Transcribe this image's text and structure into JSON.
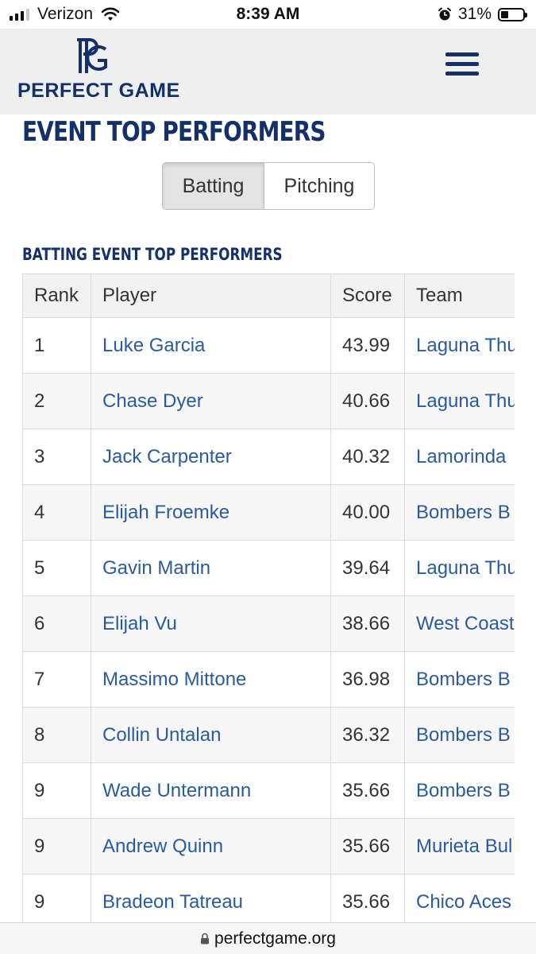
{
  "status_bar": {
    "carrier": "Verizon",
    "time": "8:39 AM",
    "battery": "31%",
    "icons": [
      "signal-icon",
      "wifi-icon",
      "alarm-icon",
      "battery-icon"
    ]
  },
  "header": {
    "logo_text": "PERFECT GAME",
    "logo_icon": "pg-logo-icon",
    "menu_icon": "hamburger-menu-icon",
    "brand_color": "#13306b"
  },
  "page": {
    "title": "EVENT TOP PERFORMERS",
    "toggle": {
      "batting": "Batting",
      "pitching": "Pitching",
      "selected": "Batting"
    },
    "section_title": "BATTING EVENT TOP PERFORMERS"
  },
  "table": {
    "headers": {
      "rank": "Rank",
      "player": "Player",
      "score": "Score",
      "team": "Team"
    },
    "link_color": "#2a5aa0",
    "rows": [
      {
        "rank": "1",
        "player": "Luke Garcia",
        "score": "43.99",
        "team": "Laguna Thu"
      },
      {
        "rank": "2",
        "player": "Chase Dyer",
        "score": "40.66",
        "team": "Laguna Thu"
      },
      {
        "rank": "3",
        "player": "Jack Carpenter",
        "score": "40.32",
        "team": "Lamorinda"
      },
      {
        "rank": "4",
        "player": "Elijah Froemke",
        "score": "40.00",
        "team": "Bombers B"
      },
      {
        "rank": "5",
        "player": "Gavin Martin",
        "score": "39.64",
        "team": "Laguna Thu"
      },
      {
        "rank": "6",
        "player": "Elijah Vu",
        "score": "38.66",
        "team": "West Coast"
      },
      {
        "rank": "7",
        "player": "Massimo Mittone",
        "score": "36.98",
        "team": "Bombers B"
      },
      {
        "rank": "8",
        "player": "Collin Untalan",
        "score": "36.32",
        "team": "Bombers B"
      },
      {
        "rank": "9",
        "player": "Wade Untermann",
        "score": "35.66",
        "team": "Bombers B"
      },
      {
        "rank": "9",
        "player": "Andrew Quinn",
        "score": "35.66",
        "team": "Murieta Bul"
      },
      {
        "rank": "9",
        "player": "Bradeon Tatreau",
        "score": "35.66",
        "team": "Chico Aces"
      }
    ]
  },
  "browser": {
    "url": "perfectgame.org",
    "lock_icon": "lock-icon"
  }
}
